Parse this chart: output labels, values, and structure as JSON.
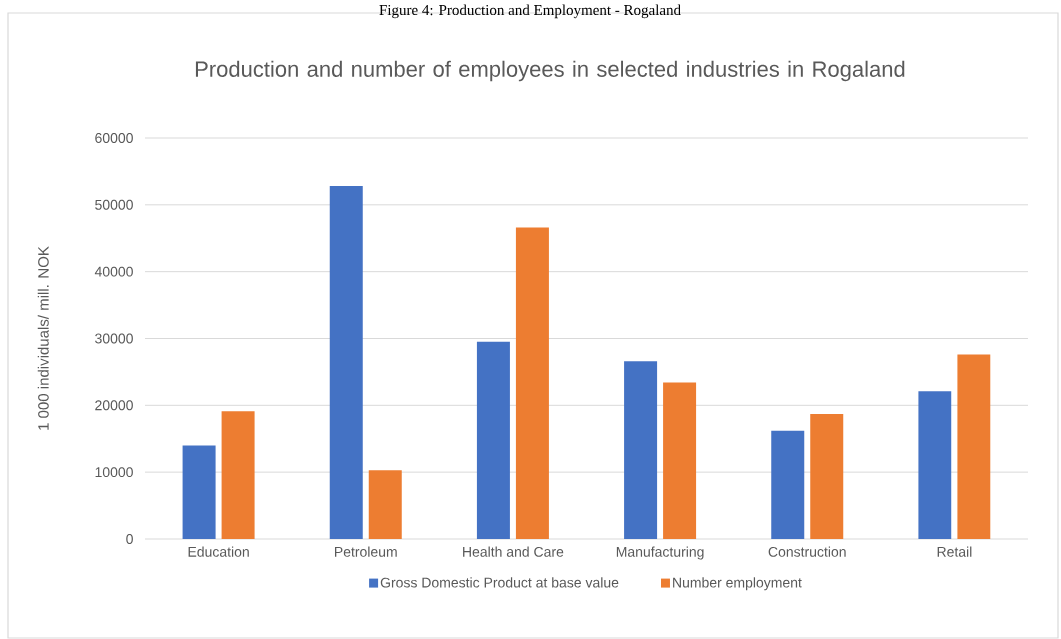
{
  "chart_data": {
    "type": "bar",
    "title": "Production and number of employees in selected industries in Rogaland",
    "ylabel": "1 000 individuals/ mill. NOK",
    "annotations": [
      "Figure 4: Production and Employment - Rogaland"
    ],
    "categories": [
      "Education",
      "Petroleum",
      "Health and Care",
      "Manufacturing",
      "Construction",
      "Retail"
    ],
    "series": [
      {
        "name": "Gross Domestic Product at base value",
        "color": "#4472c4",
        "values": [
          14000,
          52800,
          29500,
          26600,
          16200,
          22100
        ]
      },
      {
        "name": "Number employment",
        "color": "#ed7d31",
        "values": [
          19100,
          10300,
          46600,
          23400,
          18700,
          27600
        ]
      }
    ],
    "ylim": [
      0,
      60000
    ],
    "yticks": [
      0,
      10000,
      20000,
      30000,
      40000,
      50000,
      60000
    ],
    "grid": "y",
    "legend": "bottom"
  }
}
